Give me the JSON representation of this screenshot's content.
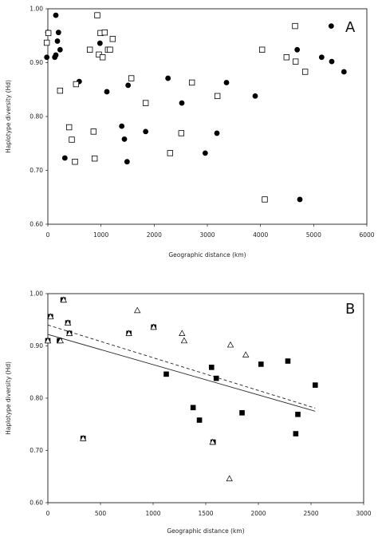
{
  "chart_data": [
    {
      "type": "scatter",
      "panel_label": "A",
      "title": "",
      "xlabel": "Geographic distance (km)",
      "ylabel": "Haplotype diversity (Hd)",
      "xlim": [
        0,
        6000
      ],
      "ylim": [
        0.6,
        1.0
      ],
      "xticks": [
        "0",
        "1000",
        "2000",
        "3000",
        "4000",
        "5000",
        "6000"
      ],
      "yticks": [
        "0.60",
        "0.70",
        "0.80",
        "0.90",
        "1.00"
      ],
      "grid": false,
      "legend": "none",
      "series": [
        {
          "marker": "filled-circle",
          "color": "#000000",
          "x": [
            -20,
            0,
            130,
            150,
            150,
            180,
            200,
            230,
            320,
            590,
            980,
            1110,
            1390,
            1440,
            1490,
            1510,
            1840,
            2260,
            2520,
            2960,
            3180,
            3360,
            3900,
            4690,
            4740,
            5150,
            5330,
            5340,
            5570
          ],
          "y": [
            0.91,
            0.956,
            0.91,
            0.914,
            0.988,
            0.94,
            0.956,
            0.924,
            0.723,
            0.865,
            0.936,
            0.846,
            0.782,
            0.758,
            0.716,
            0.858,
            0.772,
            0.871,
            0.825,
            0.732,
            0.769,
            0.863,
            0.838,
            0.924,
            0.646,
            0.91,
            0.968,
            0.902,
            0.883
          ]
        },
        {
          "marker": "open-square",
          "color": "#000000",
          "x": [
            -20,
            10,
            230,
            400,
            450,
            510,
            530,
            790,
            860,
            880,
            930,
            960,
            990,
            1030,
            1070,
            1130,
            1170,
            1220,
            1570,
            1840,
            2300,
            2510,
            2710,
            3190,
            4030,
            4080,
            4490,
            4650,
            4660,
            4840
          ],
          "y": [
            0.937,
            0.955,
            0.848,
            0.78,
            0.757,
            0.716,
            0.86,
            0.924,
            0.772,
            0.722,
            0.988,
            0.915,
            0.955,
            0.91,
            0.956,
            0.924,
            0.924,
            0.944,
            0.871,
            0.825,
            0.732,
            0.769,
            0.863,
            0.838,
            0.924,
            0.646,
            0.91,
            0.968,
            0.902,
            0.883
          ]
        }
      ]
    },
    {
      "type": "scatter",
      "panel_label": "B",
      "title": "",
      "xlabel": "Geographic distance (km)",
      "ylabel": "Haplotype diversity (Hd)",
      "xlim": [
        0,
        3000
      ],
      "ylim": [
        0.6,
        1.0
      ],
      "xticks": [
        "0",
        "500",
        "1000",
        "1500",
        "2000",
        "2500",
        "3000"
      ],
      "yticks": [
        "0.60",
        "0.70",
        "0.80",
        "0.90",
        "1.00"
      ],
      "grid": false,
      "legend": "none",
      "series": [
        {
          "marker": "filled-square",
          "color": "#000000",
          "x": [
            0,
            25,
            110,
            145,
            190,
            205,
            335,
            770,
            1005,
            1125,
            1380,
            1440,
            1555,
            1570,
            1600,
            1845,
            2025,
            2280,
            2355,
            2375,
            2540
          ],
          "y": [
            0.91,
            0.956,
            0.91,
            0.988,
            0.944,
            0.924,
            0.723,
            0.924,
            0.936,
            0.846,
            0.782,
            0.758,
            0.859,
            0.716,
            0.838,
            0.772,
            0.865,
            0.871,
            0.732,
            0.769,
            0.825
          ]
        },
        {
          "marker": "open-triangle",
          "color": "#000000",
          "x": [
            0,
            25,
            120,
            150,
            190,
            205,
            335,
            770,
            850,
            1005,
            1275,
            1295,
            1565,
            1725,
            1735,
            1880
          ],
          "y": [
            0.91,
            0.956,
            0.91,
            0.988,
            0.944,
            0.924,
            0.723,
            0.924,
            0.968,
            0.936,
            0.924,
            0.91,
            0.716,
            0.646,
            0.902,
            0.883
          ]
        }
      ],
      "trendlines": [
        {
          "style": "solid",
          "x": [
            0,
            2540
          ],
          "y": [
            0.922,
            0.775
          ]
        },
        {
          "style": "dashed",
          "x": [
            0,
            2540
          ],
          "y": [
            0.94,
            0.781
          ]
        }
      ]
    }
  ]
}
